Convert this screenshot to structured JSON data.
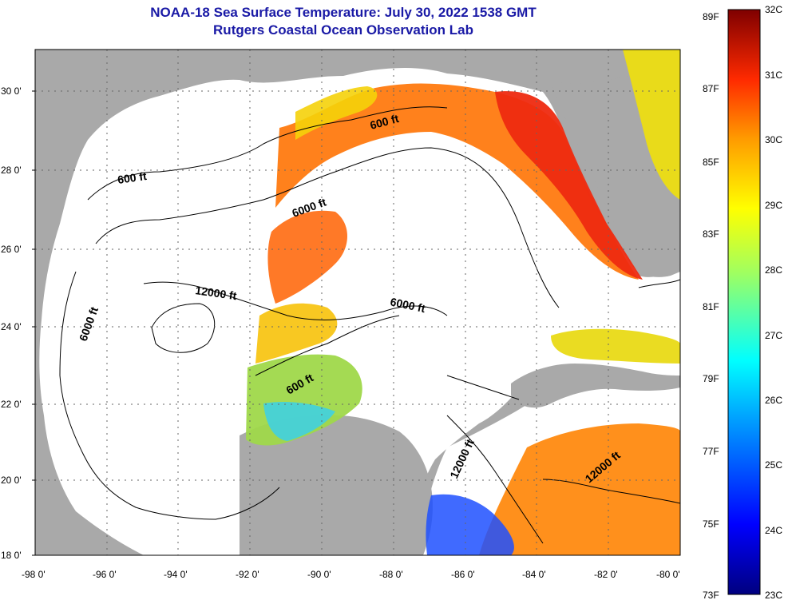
{
  "title": "NOAA-18 Sea Surface Temperature:  July 30, 2022 1538 GMT",
  "subtitle": "Rutgers Coastal Ocean Observation Lab",
  "latitude_ticks": [
    "30 0'",
    "28 0'",
    "26 0'",
    "24 0'",
    "22 0'",
    "20 0'",
    "18 0'"
  ],
  "longitude_ticks": [
    "-98 0'",
    "-96 0'",
    "-94 0'",
    "-92 0'",
    "-90 0'",
    "-88 0'",
    "-86 0'",
    "-84 0'",
    "-82 0'",
    "-80 0'"
  ],
  "contour_labels": [
    "600 ft",
    "6000 ft",
    "600 ft",
    "12000 ft",
    "6000 ft",
    "6000 ft",
    "600 ft",
    "12000 ft",
    "12000 ft"
  ],
  "colorbar": {
    "fahrenheit_labels": [
      "89F",
      "87F",
      "85F",
      "83F",
      "81F",
      "79F",
      "77F",
      "75F",
      "73F"
    ],
    "celsius_labels": [
      "32C",
      "31C",
      "30C",
      "29C",
      "28C",
      "27C",
      "26C",
      "25C",
      "24C",
      "23C"
    ]
  },
  "colors": {
    "title": "#1a1aa6",
    "land": "#a9a9a9",
    "no_data": "#ffffff",
    "warm": "#e63a17",
    "cool": "#1e3cff"
  }
}
